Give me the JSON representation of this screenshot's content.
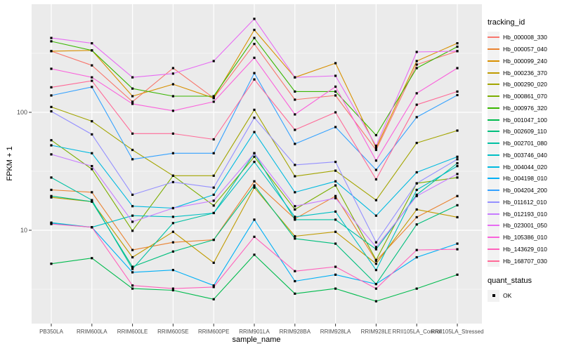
{
  "chart_data": {
    "type": "line",
    "title": "",
    "xlabel": "sample_name",
    "ylabel": "FPKM + 1",
    "y_scale": "log10",
    "y_ticks": [
      100,
      10
    ],
    "y_minor_gridlines": [
      316.23,
      31.62,
      3.162
    ],
    "ylim": [
      1.6,
      825
    ],
    "legend_position": "right",
    "grid": "on",
    "legend_title": "tracking_id",
    "legend2": {
      "title": "quant_status",
      "items": [
        {
          "label": "OK",
          "marker": "black-square"
        }
      ]
    },
    "colors": {
      "panel_background": "#EBEBEB",
      "gridline": "#FFFFFF",
      "point": "#000000",
      "tick_text": "#4d4d4d"
    },
    "categories": [
      "PB350LA",
      "RRIM600LA",
      "RRIM600LE",
      "RRIM600SE",
      "RRIM600PE",
      "RRIM901LA",
      "RRIM928BA",
      "RRIM928LA",
      "RRIM928LE",
      "RRII105LA_Control",
      "RRII105LA_Stressed"
    ],
    "series": [
      {
        "name": "Hb_000008_330",
        "color": "#F8766D",
        "values": [
          330,
          250,
          123,
          237,
          132,
          380,
          128,
          139,
          48,
          254,
          330
        ]
      },
      {
        "name": "Hb_000057_040",
        "color": "#EA8331",
        "values": [
          22,
          21,
          6.8,
          7.9,
          8.3,
          26,
          12.5,
          19.5,
          5.5,
          12.9,
          19.5
        ]
      },
      {
        "name": "Hb_000099_240",
        "color": "#D89000",
        "values": [
          330,
          335,
          137,
          173,
          132,
          500,
          198,
          261,
          50,
          272,
          385
        ]
      },
      {
        "name": "Hb_000236_370",
        "color": "#C09B00",
        "values": [
          19,
          17.5,
          5.9,
          9.7,
          5.3,
          23,
          8.9,
          9.7,
          5.2,
          15,
          12.9
        ]
      },
      {
        "name": "Hb_000290_020",
        "color": "#A3A500",
        "values": [
          111,
          84,
          48,
          29,
          29,
          105,
          28.7,
          32,
          18,
          55,
          70
        ]
      },
      {
        "name": "Hb_000861_070",
        "color": "#7CAE00",
        "values": [
          58,
          33,
          9.9,
          29,
          16.2,
          42,
          15,
          24,
          5.6,
          25,
          28
        ]
      },
      {
        "name": "Hb_000976_320",
        "color": "#39B600",
        "values": [
          400,
          335,
          159,
          137,
          137,
          427,
          150,
          150,
          64,
          237,
          360
        ]
      },
      {
        "name": "Hb_001047_100",
        "color": "#00BB4E",
        "values": [
          5.2,
          5.8,
          3.2,
          3.1,
          2.6,
          6.2,
          2.9,
          3.2,
          2.5,
          3.2,
          4.2
        ]
      },
      {
        "name": "Hb_002609_110",
        "color": "#00BF7D",
        "values": [
          19.5,
          17.5,
          4.9,
          6.6,
          8.3,
          24,
          8.5,
          7.7,
          3.5,
          11.2,
          16.3
        ]
      },
      {
        "name": "Hb_002701_080",
        "color": "#00C1A3",
        "values": [
          28,
          18,
          4.7,
          11.5,
          14,
          45,
          12.3,
          12.3,
          6.9,
          20,
          37
        ]
      },
      {
        "name": "Hb_003746_040",
        "color": "#00BFC4",
        "values": [
          11.6,
          10.6,
          13.3,
          13,
          14,
          38,
          13,
          14.4,
          4.6,
          22,
          35
        ]
      },
      {
        "name": "Hb_004044_020",
        "color": "#00BAE0",
        "values": [
          52.5,
          45,
          16,
          15.4,
          20,
          68,
          21,
          26,
          13.3,
          31,
          42
        ]
      },
      {
        "name": "Hb_004198_010",
        "color": "#00B0F6",
        "values": [
          11.4,
          10.6,
          4.4,
          4.6,
          3.4,
          12.3,
          3.7,
          4.2,
          3.5,
          5.9,
          7.7
        ]
      },
      {
        "name": "Hb_004204_200",
        "color": "#35A2FF",
        "values": [
          139,
          164,
          40,
          45,
          45,
          215,
          54,
          75,
          32.5,
          91,
          140
        ]
      },
      {
        "name": "Hb_011612_010",
        "color": "#9590FF",
        "values": [
          102,
          65,
          20,
          25.6,
          23,
          90,
          35.8,
          38,
          7.9,
          25,
          40
        ]
      },
      {
        "name": "Hb_012193_010",
        "color": "#C77CFF",
        "values": [
          44,
          35,
          11.8,
          15.4,
          17.8,
          45,
          16,
          18.7,
          7.2,
          19.5,
          30
        ]
      },
      {
        "name": "Hb_023001_050",
        "color": "#E76BF3",
        "values": [
          427,
          385,
          198,
          213,
          272,
          620,
          198,
          204,
          52,
          325,
          330
        ]
      },
      {
        "name": "Hb_105386_010",
        "color": "#FA62DB",
        "values": [
          234,
          198,
          118,
          103,
          123,
          290,
          96,
          165,
          39,
          145,
          237
        ]
      },
      {
        "name": "Hb_143629_010",
        "color": "#FF62BC",
        "values": [
          11.3,
          10.6,
          3.4,
          3.2,
          3.3,
          8.8,
          4.5,
          4.9,
          3.2,
          6.8,
          6.9
        ]
      },
      {
        "name": "Hb_168707_030",
        "color": "#FF6A98",
        "values": [
          163,
          185,
          66,
          66,
          59,
          190,
          71,
          100,
          27,
          116,
          150
        ]
      }
    ]
  }
}
